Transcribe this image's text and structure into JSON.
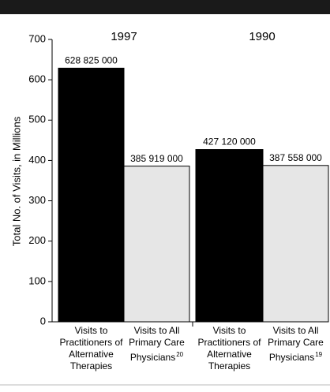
{
  "chart_data": {
    "type": "bar",
    "y_label": "Total No. of Visits, in Millions",
    "group_labels": [
      "1997",
      "1990"
    ],
    "categories": [
      "Visits to Practitioners of Alternative Therapies",
      "Visits to All Primary Care Physicians",
      "Visits to Practitioners of Alternative Therapies",
      "Visits to All Primary Care Physicians"
    ],
    "superscripts": [
      null,
      "20",
      null,
      "19"
    ],
    "values": [
      628.825,
      385.919,
      427.12,
      387.558
    ],
    "value_labels": [
      "628 825 000",
      "385 919 000",
      "427 120 000",
      "387 558 000"
    ],
    "colors": [
      "#000000",
      "#e6e6e6",
      "#000000",
      "#e6e6e6"
    ],
    "ylim": [
      0,
      700
    ],
    "yticks": [
      0,
      100,
      200,
      300,
      400,
      500,
      600,
      700
    ]
  }
}
